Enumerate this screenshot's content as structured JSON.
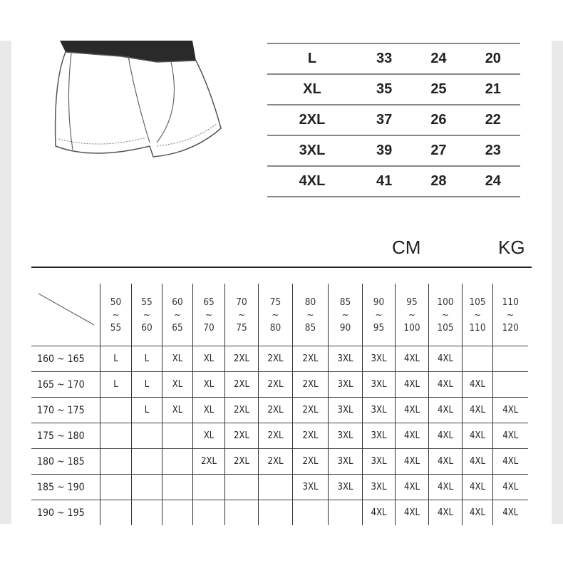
{
  "top_table": [
    [
      "L",
      "33",
      "24",
      "20"
    ],
    [
      "XL",
      "35",
      "25",
      "21"
    ],
    [
      "2XL",
      "37",
      "26",
      "22"
    ],
    [
      "3XL",
      "39",
      "27",
      "23"
    ],
    [
      "4XL",
      "41",
      "28",
      "24"
    ]
  ],
  "units": {
    "height": "CM",
    "weight": "KG"
  },
  "grid": {
    "columns": [
      [
        "50",
        "55"
      ],
      [
        "55",
        "60"
      ],
      [
        "60",
        "65"
      ],
      [
        "65",
        "70"
      ],
      [
        "70",
        "75"
      ],
      [
        "75",
        "80"
      ],
      [
        "80",
        "85"
      ],
      [
        "85",
        "90"
      ],
      [
        "90",
        "95"
      ],
      [
        "95",
        "100"
      ],
      [
        "100",
        "105"
      ],
      [
        "105",
        "110"
      ],
      [
        "110",
        "120"
      ]
    ],
    "tilde": "~",
    "rows": [
      {
        "label": "160 ~ 165",
        "cells": [
          "L",
          "L",
          "XL",
          "XL",
          "2XL",
          "2XL",
          "2XL",
          "3XL",
          "3XL",
          "4XL",
          "4XL",
          "",
          ""
        ]
      },
      {
        "label": "165 ~ 170",
        "cells": [
          "L",
          "L",
          "XL",
          "XL",
          "2XL",
          "2XL",
          "2XL",
          "3XL",
          "3XL",
          "4XL",
          "4XL",
          "4XL",
          ""
        ]
      },
      {
        "label": "170 ~ 175",
        "cells": [
          "",
          "L",
          "XL",
          "XL",
          "2XL",
          "2XL",
          "2XL",
          "3XL",
          "3XL",
          "4XL",
          "4XL",
          "4XL",
          "4XL"
        ]
      },
      {
        "label": "175 ~ 180",
        "cells": [
          "",
          "",
          "",
          "XL",
          "2XL",
          "2XL",
          "2XL",
          "3XL",
          "3XL",
          "4XL",
          "4XL",
          "4XL",
          "4XL"
        ]
      },
      {
        "label": "180 ~ 185",
        "cells": [
          "",
          "",
          "",
          "2XL",
          "2XL",
          "2XL",
          "2XL",
          "3XL",
          "3XL",
          "4XL",
          "4XL",
          "4XL",
          "4XL"
        ]
      },
      {
        "label": "185 ~ 190",
        "cells": [
          "",
          "",
          "",
          "",
          "",
          "",
          "3XL",
          "3XL",
          "3XL",
          "4XL",
          "4XL",
          "4XL",
          "4XL"
        ]
      },
      {
        "label": "190 ~ 195",
        "cells": [
          "",
          "",
          "",
          "",
          "",
          "",
          "",
          "",
          "4XL",
          "4XL",
          "4XL",
          "4XL",
          "4XL"
        ]
      }
    ]
  },
  "colors": {
    "dark_sizes": "#111111",
    "light_sizes": "#8a8a8a",
    "waistband": "#2a2a2a"
  }
}
